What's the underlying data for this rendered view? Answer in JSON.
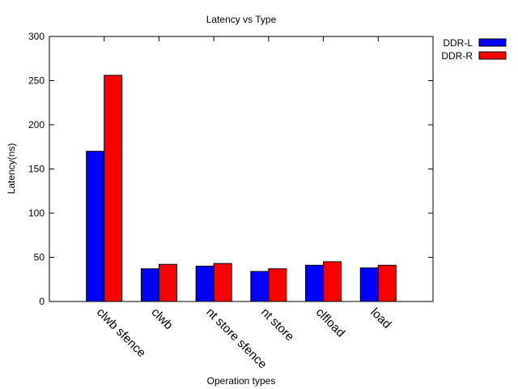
{
  "chart_data": {
    "type": "bar",
    "title": "Latency vs Type",
    "xlabel": "Operation types",
    "ylabel": "Latency(ns)",
    "ylim": [
      0,
      300
    ],
    "yticks": [
      0,
      50,
      100,
      150,
      200,
      250,
      300
    ],
    "categories": [
      "clwb sfence",
      "clwb",
      "nt store sfence",
      "nt store",
      "clfload",
      "load"
    ],
    "series": [
      {
        "name": "DDR-L",
        "color": "#0000ff",
        "values": [
          170,
          37,
          40,
          34,
          41,
          38
        ]
      },
      {
        "name": "DDR-R",
        "color": "#ff0000",
        "values": [
          256,
          42,
          43,
          37,
          45,
          41
        ]
      }
    ],
    "legend_position": "top-right",
    "grid": false
  }
}
